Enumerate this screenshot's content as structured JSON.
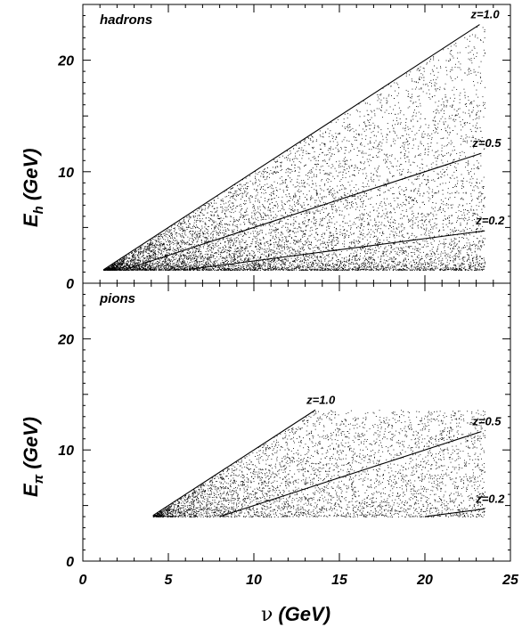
{
  "chart_data": [
    {
      "type": "scatter",
      "panel_label": "hadrons",
      "xlim": [
        0,
        25
      ],
      "ylim": [
        0,
        25
      ],
      "ylabel_main": "E",
      "ylabel_sub": "h",
      "ylabel_units": "(GeV)",
      "y_ticks": [
        "0",
        "10",
        "20"
      ],
      "y_tick_values": [
        0,
        10,
        20
      ],
      "series": [
        {
          "label": "z=1.0",
          "x": [
            1.2,
            23.2
          ],
          "y": [
            1.2,
            23.2
          ]
        },
        {
          "label": "z=0.5",
          "x": [
            2.5,
            23.3
          ],
          "y": [
            1.25,
            11.65
          ]
        },
        {
          "label": "z=0.2",
          "x": [
            6.2,
            23.5
          ],
          "y": [
            1.24,
            4.7
          ]
        }
      ],
      "scatter_region": {
        "x_range": [
          1.2,
          23.5
        ],
        "y_min": 1.2,
        "density": "highest at low E, falls with E"
      }
    },
    {
      "type": "scatter",
      "panel_label": "pions",
      "xlim": [
        0,
        25
      ],
      "ylim": [
        0,
        25
      ],
      "ylabel_main": "E",
      "ylabel_sub": "π",
      "ylabel_units": "(GeV)",
      "y_ticks": [
        "0",
        "10",
        "20"
      ],
      "y_tick_values": [
        0,
        10,
        20
      ],
      "x_ticks": [
        "0",
        "5",
        "10",
        "15",
        "20",
        "25"
      ],
      "x_tick_values": [
        0,
        5,
        10,
        15,
        20,
        25
      ],
      "xlabel_main": "ν",
      "xlabel_units": "(GeV)",
      "series": [
        {
          "label": "z=1.0",
          "x": [
            4.1,
            13.6
          ],
          "y": [
            4.1,
            13.6
          ]
        },
        {
          "label": "z=0.5",
          "x": [
            8.0,
            23.3
          ],
          "y": [
            4.0,
            11.65
          ]
        },
        {
          "label": "z=0.2",
          "x": [
            20.0,
            23.5
          ],
          "y": [
            4.0,
            4.7
          ]
        }
      ],
      "scatter_region": {
        "x_range": [
          4.1,
          23.5
        ],
        "y_min": 4.0,
        "density": "moderate, falls with E"
      }
    }
  ]
}
